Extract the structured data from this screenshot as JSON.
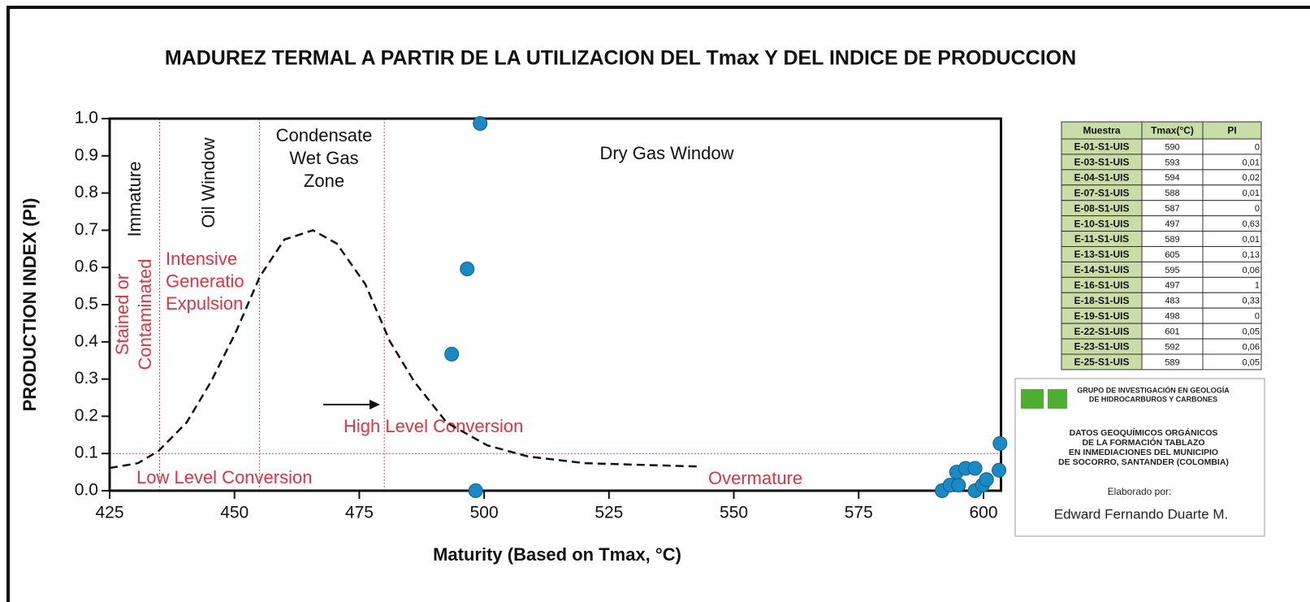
{
  "chart_data": {
    "type": "scatter",
    "title": "MADUREZ TERMAL A PARTIR DE LA UTILIZACION DEL Tmax Y DEL INDICE DE PRODUCCION",
    "xlabel": "Maturity  (Based on Tmax, °C)",
    "ylabel": "PRODUCTION INDEX  (PI)",
    "xlim": [
      425,
      603.5
    ],
    "ylim": [
      0,
      1
    ],
    "xticks": [
      425,
      450,
      475,
      500,
      525,
      550,
      575,
      600
    ],
    "yticks": [
      {
        "value": 0,
        "label": "0.0"
      },
      0.1,
      0.2,
      0.3,
      0.4,
      0.5,
      0.6,
      0.7,
      0.8,
      0.9,
      {
        "value": 1,
        "label": "1.0"
      }
    ],
    "x": [
      499.2,
      496.6,
      493.5,
      498.3,
      591.7,
      593.3,
      595.0,
      594.6,
      596.4,
      598.3,
      598.3,
      599.8,
      600.6,
      603.1,
      603.3
    ],
    "y": [
      0.987,
      0.596,
      0.367,
      0,
      0,
      0.015,
      0.015,
      0.05,
      0.06,
      0.06,
      0,
      0.015,
      0.03,
      0.055,
      0.127
    ],
    "color": "#1a8ac6",
    "curve": {
      "x": [
        425,
        430.7,
        434.8,
        440.4,
        445.3,
        450.2,
        455.1,
        460,
        465.7,
        470.5,
        476.2,
        481.1,
        486,
        492.5,
        500.6,
        508.8,
        520.1,
        542.9
      ],
      "y": [
        0.061,
        0.074,
        0.107,
        0.183,
        0.293,
        0.424,
        0.576,
        0.675,
        0.7,
        0.664,
        0.555,
        0.402,
        0.293,
        0.183,
        0.122,
        0.092,
        0.074,
        0.065
      ]
    },
    "boundaries": {
      "x": [
        435,
        455,
        480
      ],
      "y": 0.1,
      "color": "#f04050"
    },
    "annotations": [
      {
        "lines": [
          "Immature"
        ],
        "color": "#111111"
      },
      {
        "lines": [
          "Oil  Window"
        ],
        "color": "#111111"
      },
      {
        "lines": [
          "Condensate",
          "Wet  Gas",
          "Zone"
        ],
        "color": "#111111"
      },
      {
        "lines": [
          "Dry  Gas  Window"
        ],
        "color": "#111111"
      },
      {
        "lines": [
          "Stained or",
          "Contaminated"
        ],
        "color": "#e8303f"
      },
      {
        "lines": [
          "Intensive",
          "Generatio",
          "Expulsion"
        ],
        "color": "#e8303f"
      },
      {
        "lines": [
          "High Level Conversion"
        ],
        "color": "#e8303f"
      },
      {
        "lines": [
          "Low Level Conversion"
        ],
        "color": "#e8303f"
      },
      {
        "lines": [
          "Overmature"
        ],
        "color": "#e8303f"
      }
    ]
  },
  "table": {
    "header": [
      "Muestra",
      "Tmax(°C)",
      "PI"
    ],
    "rows": [
      [
        "E-01-S1-UIS",
        "590",
        "0"
      ],
      [
        "E-03-S1-UIS",
        "593",
        "0,01"
      ],
      [
        "E-04-S1-UIS",
        "594",
        "0,02"
      ],
      [
        "E-07-S1-UIS",
        "588",
        "0,01"
      ],
      [
        "E-08-S1-UIS",
        "587",
        "0"
      ],
      [
        "E-10-S1-UIS",
        "497",
        "0,63"
      ],
      [
        "E-11-S1-UIS",
        "589",
        "0,01"
      ],
      [
        "E-13-S1-UIS",
        "605",
        "0,13"
      ],
      [
        "E-14-S1-UIS",
        "595",
        "0,06"
      ],
      [
        "E-16-S1-UIS",
        "497",
        "1"
      ],
      [
        "E-18-S1-UIS",
        "483",
        "0,33"
      ],
      [
        "E-19-S1-UIS",
        "498",
        "0"
      ],
      [
        "E-22-S1-UIS",
        "601",
        "0,05"
      ],
      [
        "E-23-S1-UIS",
        "592",
        "0,06"
      ],
      [
        "E-25-S1-UIS",
        "589",
        "0,05"
      ]
    ]
  },
  "info": {
    "group": [
      "GRUPO DE INVESTIGACIÓN EN GEOLOGÍA",
      "DE HIDROCARBUROS Y CARBONES"
    ],
    "lines": [
      "DATOS GEOQUÍMICOS ORGÁNICOS",
      "DE LA FORMACIÓN TABLAZO",
      "EN INMEDIACIONES DEL  MUNICIPIO",
      "DE SOCORRO, SANTANDER (COLOMBIA)"
    ],
    "made_by": "Elaborado por:",
    "author": "Edward Fernando Duarte M."
  }
}
